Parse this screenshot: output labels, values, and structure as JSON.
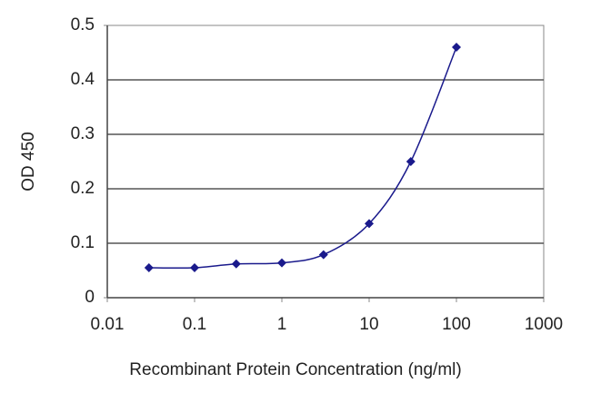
{
  "chart_data": {
    "type": "line",
    "xlabel": "Recombinant Protein Concentration (ng/ml)",
    "ylabel": "OD 450",
    "x": [
      0.03,
      0.1,
      0.3,
      1,
      3,
      10,
      30,
      100
    ],
    "series": [
      {
        "name": "OD 450",
        "color": "#1a1a8c",
        "values": [
          0.055,
          0.055,
          0.062,
          0.064,
          0.079,
          0.136,
          0.25,
          0.46
        ]
      }
    ],
    "xlim": [
      0.01,
      1000
    ],
    "xticks": [
      0.01,
      0.1,
      1,
      10,
      100,
      1000
    ],
    "xscale": "log",
    "ylim": [
      0,
      0.5
    ],
    "yticks": [
      0,
      0.1,
      0.2,
      0.3,
      0.4,
      0.5
    ],
    "grid": true
  }
}
